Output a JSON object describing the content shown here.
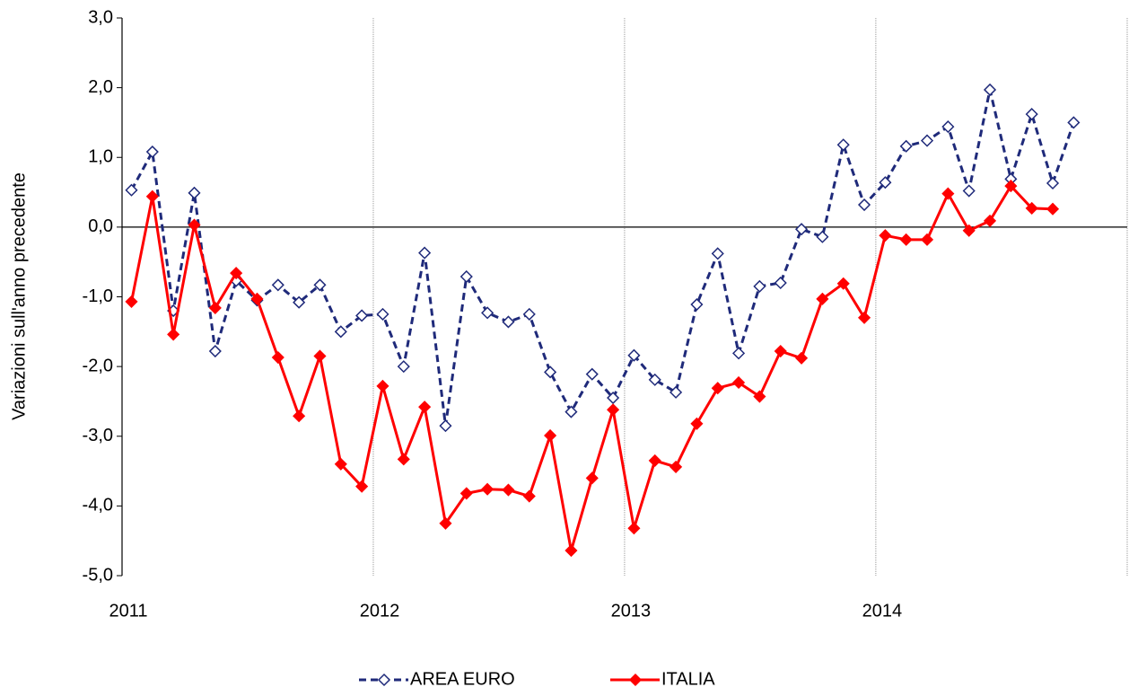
{
  "chart_data": {
    "type": "line",
    "ylabel": "Variazioni sull'anno precedente",
    "categories": [
      "2011",
      null,
      null,
      null,
      null,
      null,
      null,
      null,
      null,
      null,
      null,
      null,
      "2012",
      null,
      null,
      null,
      null,
      null,
      null,
      null,
      null,
      null,
      null,
      null,
      "2013",
      null,
      null,
      null,
      null,
      null,
      null,
      null,
      null,
      null,
      null,
      null,
      "2014",
      null,
      null,
      null,
      null,
      null,
      null,
      null,
      null,
      null
    ],
    "series": [
      {
        "name": "AREA EURO",
        "color": "#1f2a7a",
        "dashed": true,
        "marker": "open-diamond",
        "values": [
          0.53,
          1.08,
          -1.2,
          0.49,
          -1.78,
          -0.77,
          -1.05,
          -0.83,
          -1.08,
          -0.83,
          -1.5,
          -1.27,
          -1.25,
          -2.0,
          -0.37,
          -2.85,
          -0.71,
          -1.23,
          -1.36,
          -1.25,
          -2.08,
          -2.65,
          -2.11,
          -2.45,
          -1.84,
          -2.19,
          -2.37,
          -1.11,
          -0.38,
          -1.81,
          -0.85,
          -0.8,
          -0.03,
          -0.14,
          1.18,
          0.32,
          0.64,
          1.16,
          1.24,
          1.44,
          0.52,
          1.97,
          0.69,
          1.62,
          0.63,
          1.5
        ]
      },
      {
        "name": "ITALIA",
        "color": "#ff0000",
        "dashed": false,
        "marker": "filled-diamond",
        "values": [
          -1.07,
          0.44,
          -1.54,
          0.03,
          -1.16,
          -0.66,
          -1.03,
          -1.87,
          -2.71,
          -1.85,
          -3.4,
          -3.72,
          -2.28,
          -3.33,
          -2.58,
          -4.25,
          -3.82,
          -3.76,
          -3.77,
          -3.86,
          -2.99,
          -4.64,
          -3.6,
          -2.62,
          -4.32,
          -3.35,
          -3.44,
          -2.82,
          -2.31,
          -2.23,
          -2.43,
          -1.78,
          -1.88,
          -1.03,
          -0.81,
          -1.3,
          -0.12,
          -0.18,
          -0.18,
          0.48,
          -0.05,
          0.09,
          0.59,
          0.27,
          0.26,
          null
        ]
      }
    ],
    "ylim": [
      -5,
      3
    ],
    "yticks": [
      {
        "value": -5,
        "label": "-5,0"
      },
      {
        "value": -4,
        "label": "-4,0"
      },
      {
        "value": -3,
        "label": "-3,0"
      },
      {
        "value": -2,
        "label": "-2,0"
      },
      {
        "value": -1,
        "label": "-1,0"
      },
      {
        "value": 0,
        "label": "0,0"
      },
      {
        "value": 1,
        "label": "1,0"
      },
      {
        "value": 2,
        "label": "2,0"
      },
      {
        "value": 3,
        "label": "3,0"
      }
    ],
    "grid": "x",
    "legend": "bottom"
  }
}
